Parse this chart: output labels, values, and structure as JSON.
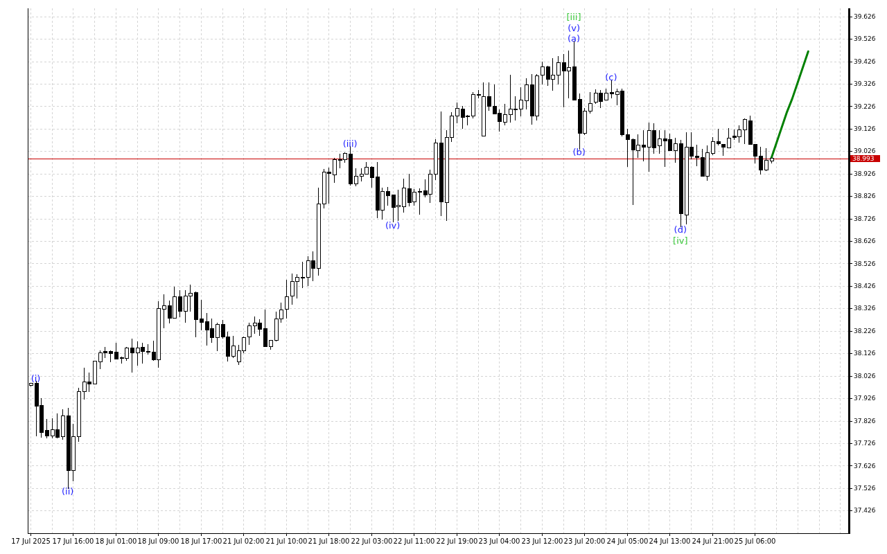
{
  "chart_data": {
    "type": "candlestick",
    "categories": [
      "17 Jul 2025",
      null,
      null,
      null,
      null,
      null,
      null,
      null,
      "17 Jul 16:00",
      null,
      null,
      null,
      null,
      null,
      null,
      null,
      "18 Jul 01:00",
      null,
      null,
      null,
      null,
      null,
      null,
      null,
      "18 Jul 09:00",
      null,
      null,
      null,
      null,
      null,
      null,
      null,
      "18 Jul 17:00",
      null,
      null,
      null,
      null,
      null,
      null,
      null,
      "21 Jul 02:00",
      null,
      null,
      null,
      null,
      null,
      null,
      null,
      "21 Jul 10:00",
      null,
      null,
      null,
      null,
      null,
      null,
      null,
      "21 Jul 18:00",
      null,
      null,
      null,
      null,
      null,
      null,
      null,
      "22 Jul 03:00",
      null,
      null,
      null,
      null,
      null,
      null,
      null,
      "22 Jul 11:00",
      null,
      null,
      null,
      null,
      null,
      null,
      null,
      "22 Jul 19:00",
      null,
      null,
      null,
      null,
      null,
      null,
      null,
      "23 Jul 04:00",
      null,
      null,
      null,
      null,
      null,
      null,
      null,
      "23 Jul 12:00",
      null,
      null,
      null,
      null,
      null,
      null,
      null,
      "23 Jul 20:00",
      null,
      null,
      null,
      null,
      null,
      null,
      null,
      "24 Jul 05:00",
      null,
      null,
      null,
      null,
      null,
      null,
      null,
      "24 Jul 13:00",
      null,
      null,
      null,
      null,
      null,
      null,
      null,
      "24 Jul 21:00",
      null,
      null,
      null,
      null,
      null,
      null,
      null,
      "25 Jul 06:00",
      null,
      null,
      null,
      null,
      null,
      null,
      null,
      null,
      null,
      null,
      null,
      null,
      null,
      null,
      null,
      null,
      null
    ],
    "ohlc": [
      [
        37.982,
        37.995,
        37.978,
        37.992
      ],
      [
        37.993,
        38.002,
        37.757,
        37.891
      ],
      [
        37.893,
        37.927,
        37.749,
        37.774
      ],
      [
        37.782,
        37.835,
        37.746,
        37.758
      ],
      [
        37.758,
        37.838,
        37.746,
        37.785
      ],
      [
        37.787,
        37.859,
        37.747,
        37.752
      ],
      [
        37.755,
        37.877,
        37.742,
        37.849
      ],
      [
        37.849,
        37.882,
        37.523,
        37.604
      ],
      [
        37.604,
        37.813,
        37.557,
        37.756
      ],
      [
        37.756,
        37.972,
        37.733,
        37.957
      ],
      [
        37.956,
        38.062,
        37.921,
        38.0
      ],
      [
        38.0,
        38.041,
        37.954,
        37.989
      ],
      [
        37.989,
        38.093,
        37.988,
        38.092
      ],
      [
        38.089,
        38.138,
        38.057,
        38.129
      ],
      [
        38.133,
        38.154,
        38.105,
        38.128
      ],
      [
        38.133,
        38.139,
        38.086,
        38.125
      ],
      [
        38.13,
        38.173,
        38.098,
        38.1
      ],
      [
        38.108,
        38.111,
        38.08,
        38.104
      ],
      [
        38.103,
        38.154,
        38.093,
        38.15
      ],
      [
        38.15,
        38.19,
        38.041,
        38.128
      ],
      [
        38.128,
        38.179,
        38.072,
        38.15
      ],
      [
        38.153,
        38.173,
        38.08,
        38.134
      ],
      [
        38.135,
        38.167,
        38.121,
        38.131
      ],
      [
        38.132,
        38.182,
        38.094,
        38.097
      ],
      [
        38.098,
        38.357,
        38.062,
        38.325
      ],
      [
        38.322,
        38.388,
        38.238,
        38.338
      ],
      [
        38.339,
        38.36,
        38.259,
        38.282
      ],
      [
        38.282,
        38.423,
        38.28,
        38.378
      ],
      [
        38.378,
        38.407,
        38.288,
        38.313
      ],
      [
        38.313,
        38.407,
        38.263,
        38.381
      ],
      [
        38.38,
        38.432,
        38.313,
        38.394
      ],
      [
        38.395,
        38.401,
        38.199,
        38.276
      ],
      [
        38.28,
        38.364,
        38.229,
        38.263
      ],
      [
        38.266,
        38.306,
        38.159,
        38.23
      ],
      [
        38.235,
        38.281,
        38.173,
        38.196
      ],
      [
        38.196,
        38.262,
        38.137,
        38.255
      ],
      [
        38.255,
        38.275,
        38.19,
        38.199
      ],
      [
        38.2,
        38.221,
        38.091,
        38.113
      ],
      [
        38.114,
        38.203,
        38.104,
        38.16
      ],
      [
        38.089,
        38.164,
        38.073,
        38.138
      ],
      [
        38.137,
        38.2,
        38.128,
        38.197
      ],
      [
        38.199,
        38.262,
        38.165,
        38.249
      ],
      [
        38.249,
        38.29,
        38.214,
        38.26
      ],
      [
        38.261,
        38.278,
        38.204,
        38.233
      ],
      [
        38.237,
        38.32,
        38.155,
        38.156
      ],
      [
        38.157,
        38.186,
        38.143,
        38.184
      ],
      [
        38.184,
        38.312,
        38.18,
        38.278
      ],
      [
        38.278,
        38.352,
        38.262,
        38.32
      ],
      [
        38.322,
        38.453,
        38.282,
        38.378
      ],
      [
        38.381,
        38.481,
        38.343,
        38.446
      ],
      [
        38.446,
        38.478,
        38.371,
        38.464
      ],
      [
        38.464,
        38.533,
        38.417,
        38.46
      ],
      [
        38.464,
        38.557,
        38.427,
        38.538
      ],
      [
        38.538,
        38.581,
        38.448,
        38.504
      ],
      [
        38.504,
        38.864,
        38.472,
        38.791
      ],
      [
        38.791,
        38.948,
        38.772,
        38.932
      ],
      [
        38.932,
        38.953,
        38.792,
        38.926
      ],
      [
        38.919,
        38.997,
        38.884,
        38.987
      ],
      [
        38.987,
        39.015,
        38.951,
        38.984
      ],
      [
        38.987,
        39.022,
        38.975,
        39.015
      ],
      [
        39.013,
        39.047,
        38.874,
        38.881
      ],
      [
        38.881,
        38.951,
        38.871,
        38.914
      ],
      [
        38.915,
        38.951,
        38.89,
        38.925
      ],
      [
        38.924,
        38.979,
        38.923,
        38.953
      ],
      [
        38.954,
        38.959,
        38.862,
        38.909
      ],
      [
        38.911,
        38.977,
        38.729,
        38.763
      ],
      [
        38.764,
        38.862,
        38.723,
        38.845
      ],
      [
        38.845,
        38.868,
        38.783,
        38.829
      ],
      [
        38.831,
        38.833,
        38.708,
        38.777
      ],
      [
        38.778,
        38.853,
        38.715,
        38.784
      ],
      [
        38.78,
        38.905,
        38.754,
        38.861
      ],
      [
        38.859,
        38.925,
        38.78,
        38.798
      ],
      [
        38.799,
        38.857,
        38.782,
        38.842
      ],
      [
        38.848,
        38.86,
        38.744,
        38.844
      ],
      [
        38.85,
        38.901,
        38.821,
        38.832
      ],
      [
        38.833,
        38.945,
        38.797,
        38.925
      ],
      [
        38.925,
        39.079,
        38.897,
        39.061
      ],
      [
        39.061,
        39.203,
        38.737,
        38.8
      ],
      [
        38.798,
        39.119,
        38.715,
        39.088
      ],
      [
        39.087,
        39.199,
        39.068,
        39.183
      ],
      [
        39.183,
        39.243,
        39.151,
        39.216
      ],
      [
        39.214,
        39.227,
        39.126,
        39.176
      ],
      [
        39.184,
        39.186,
        39.14,
        39.18
      ],
      [
        39.182,
        39.289,
        39.172,
        39.279
      ],
      [
        39.277,
        39.297,
        39.26,
        39.275
      ],
      [
        39.094,
        39.331,
        39.093,
        39.27
      ],
      [
        39.27,
        39.331,
        39.207,
        39.225
      ],
      [
        39.227,
        39.323,
        39.19,
        39.192
      ],
      [
        39.196,
        39.212,
        39.114,
        39.157
      ],
      [
        39.155,
        39.236,
        39.142,
        39.189
      ],
      [
        39.189,
        39.366,
        39.154,
        39.212
      ],
      [
        39.214,
        39.27,
        39.164,
        39.211
      ],
      [
        39.213,
        39.31,
        39.182,
        39.254
      ],
      [
        39.251,
        39.352,
        39.211,
        39.322
      ],
      [
        39.322,
        39.368,
        39.143,
        39.182
      ],
      [
        39.182,
        39.369,
        39.164,
        39.362
      ],
      [
        39.365,
        39.424,
        39.322,
        39.402
      ],
      [
        39.402,
        39.405,
        39.318,
        39.346
      ],
      [
        39.346,
        39.44,
        39.296,
        39.365
      ],
      [
        39.365,
        39.449,
        39.322,
        39.419
      ],
      [
        39.419,
        39.458,
        39.222,
        39.383
      ],
      [
        39.384,
        39.475,
        39.262,
        39.399
      ],
      [
        39.402,
        39.517,
        39.252,
        39.253
      ],
      [
        39.257,
        39.282,
        39.033,
        39.107
      ],
      [
        39.107,
        39.217,
        39.099,
        39.204
      ],
      [
        39.203,
        39.288,
        39.194,
        39.239
      ],
      [
        39.244,
        39.302,
        39.236,
        39.285
      ],
      [
        39.285,
        39.297,
        39.218,
        39.247
      ],
      [
        39.254,
        39.303,
        39.253,
        39.285
      ],
      [
        39.286,
        39.343,
        39.262,
        39.281
      ],
      [
        39.279,
        39.305,
        39.231,
        39.291
      ],
      [
        39.294,
        39.305,
        39.091,
        39.099
      ],
      [
        39.1,
        39.127,
        38.956,
        39.078
      ],
      [
        39.079,
        39.082,
        38.787,
        39.031
      ],
      [
        39.028,
        39.101,
        38.997,
        39.054
      ],
      [
        39.054,
        39.12,
        38.981,
        39.044
      ],
      [
        39.044,
        39.152,
        38.933,
        39.118
      ],
      [
        39.118,
        39.149,
        39.015,
        39.041
      ],
      [
        39.051,
        39.12,
        39.015,
        39.082
      ],
      [
        39.082,
        39.12,
        38.957,
        39.073
      ],
      [
        39.079,
        39.105,
        39.028,
        39.029
      ],
      [
        39.029,
        39.085,
        38.974,
        39.06
      ],
      [
        39.06,
        39.075,
        38.687,
        38.747
      ],
      [
        38.741,
        39.111,
        38.7,
        39.044
      ],
      [
        39.044,
        39.111,
        38.989,
        39.004
      ],
      [
        39.004,
        39.056,
        38.96,
        38.998
      ],
      [
        38.998,
        39.035,
        38.913,
        38.914
      ],
      [
        38.914,
        39.051,
        38.894,
        39.019
      ],
      [
        39.017,
        39.09,
        39.009,
        39.067
      ],
      [
        39.067,
        39.124,
        39.051,
        39.059
      ],
      [
        39.057,
        39.058,
        39.006,
        39.043
      ],
      [
        39.042,
        39.129,
        39.039,
        39.084
      ],
      [
        39.092,
        39.122,
        39.077,
        39.087
      ],
      [
        39.09,
        39.14,
        39.064,
        39.121
      ],
      [
        39.121,
        39.171,
        39.059,
        39.168
      ],
      [
        39.161,
        39.184,
        39.055,
        39.055
      ],
      [
        39.057,
        39.058,
        38.972,
        39.003
      ],
      [
        39.005,
        39.044,
        38.921,
        38.942
      ],
      [
        38.942,
        39.039,
        38.938,
        38.984
      ],
      [
        38.983,
        38.995,
        38.972,
        38.993
      ],
      null,
      null,
      null,
      null,
      null,
      null,
      null,
      null,
      null,
      null,
      null,
      null,
      null,
      null
    ],
    "series": [
      {
        "type": "line",
        "color": "#008000",
        "values": [
          null,
          null,
          null,
          null,
          null,
          null,
          null,
          null,
          null,
          null,
          null,
          null,
          null,
          null,
          null,
          null,
          null,
          null,
          null,
          null,
          null,
          null,
          null,
          null,
          null,
          null,
          null,
          null,
          null,
          null,
          null,
          null,
          null,
          null,
          null,
          null,
          null,
          null,
          null,
          null,
          null,
          null,
          null,
          null,
          null,
          null,
          null,
          null,
          null,
          null,
          null,
          null,
          null,
          null,
          null,
          null,
          null,
          null,
          null,
          null,
          null,
          null,
          null,
          null,
          null,
          null,
          null,
          null,
          null,
          null,
          null,
          null,
          null,
          null,
          null,
          null,
          null,
          null,
          null,
          null,
          null,
          null,
          null,
          null,
          null,
          null,
          null,
          null,
          null,
          null,
          null,
          null,
          null,
          null,
          null,
          null,
          null,
          null,
          null,
          null,
          null,
          null,
          null,
          null,
          null,
          null,
          null,
          null,
          null,
          null,
          null,
          null,
          null,
          null,
          null,
          null,
          null,
          null,
          null,
          null,
          null,
          null,
          null,
          null,
          null,
          null,
          null,
          null,
          null,
          null,
          null,
          null,
          null,
          null,
          null,
          null,
          null,
          null,
          null,
          38.99,
          39.06,
          39.13,
          39.2,
          39.26,
          39.33,
          39.4,
          39.47,
          null,
          null,
          null,
          null,
          null,
          null,
          null
        ]
      }
    ],
    "ylim": [
      37.325,
      39.662
    ],
    "yticks": [
      37.426,
      37.526,
      37.626,
      37.726,
      37.826,
      37.926,
      38.026,
      38.126,
      38.226,
      38.326,
      38.426,
      38.526,
      38.626,
      38.726,
      38.826,
      38.926,
      39.026,
      39.126,
      39.226,
      39.326,
      39.426,
      39.526,
      39.626
    ],
    "grid": true,
    "ref_lines": [
      {
        "axis": "y",
        "value": 38.993,
        "label": "38.993",
        "color": "#c80000"
      }
    ],
    "annotations": [
      {
        "text": "(i)",
        "y": 38.002
      },
      {
        "text": "(ii)",
        "y": 37.523
      },
      {
        "text": "(iii)",
        "y": 39.047
      },
      {
        "text": "(iv)",
        "y": 38.708
      },
      {
        "text": "[iii]",
        "y": 39.517
      },
      {
        "text": "(v)",
        "y": 39.517
      },
      {
        "text": "(a)",
        "y": 39.517
      },
      {
        "text": "(b)",
        "y": 39.033
      },
      {
        "text": "(c)",
        "y": 39.343
      },
      {
        "text": "(d)",
        "y": 38.687
      },
      {
        "text": "[iv]",
        "y": 38.687
      }
    ]
  }
}
